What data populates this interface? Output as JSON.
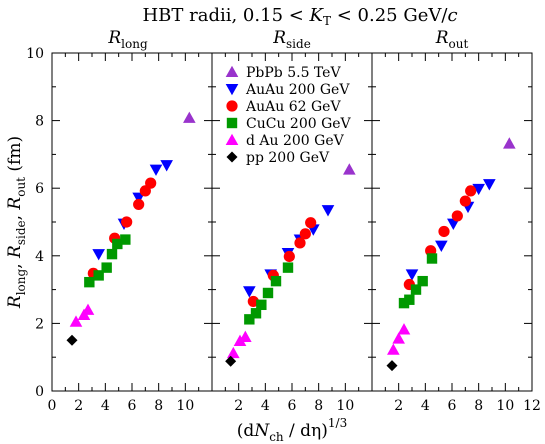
{
  "chart_data": {
    "type": "scatter",
    "title": "HBT radii,  0.15 < K_T < 0.25 GeV/c",
    "title_parts": {
      "prefix": "HBT radii,  0.15 < ",
      "var": "K",
      "var_sub": "T",
      "middle": " < 0.25 GeV/",
      "unit_var": "c"
    },
    "xlabel": "(dN_ch / dη)^1/3",
    "xlabel_parts": {
      "open": "(d",
      "var": "N",
      "sub": "ch",
      "rest": " / dη)",
      "sup": "1/3"
    },
    "ylabel": "R_long, R_side, R_out (fm)",
    "ylabel_parts": {
      "r": "R",
      "subs": [
        "long",
        "side",
        "out"
      ],
      "unit": " (fm)"
    },
    "ylim": [
      0,
      10
    ],
    "y_ticks": [
      "0",
      "2",
      "4",
      "6",
      "8",
      "10"
    ],
    "panels": [
      {
        "name": "long",
        "xlim": [
          0,
          12
        ],
        "x_ticks": [
          "0",
          "2",
          "4",
          "6",
          "8",
          "10"
        ]
      },
      {
        "name": "side",
        "xlim": [
          0,
          12
        ],
        "x_ticks": [
          "2",
          "4",
          "6",
          "8",
          "10"
        ]
      },
      {
        "name": "out",
        "xlim": [
          0,
          12
        ],
        "x_ticks": [
          "2",
          "4",
          "6",
          "8",
          "10",
          "12"
        ]
      }
    ],
    "legend_location": "top-center",
    "series": [
      {
        "name": "PbPb  5.5 TeV",
        "marker": "triangle-up",
        "color": "#9933cc",
        "long": [
          [
            10.3,
            8.08
          ]
        ],
        "side": [
          [
            10.3,
            6.55
          ]
        ],
        "out": [
          [
            10.3,
            7.32
          ]
        ]
      },
      {
        "name": "AuAu  200 GeV",
        "marker": "triangle-down",
        "color": "#0000ff",
        "long": [
          [
            3.5,
            4.05
          ],
          [
            5.4,
            4.95
          ],
          [
            6.5,
            5.72
          ],
          [
            7.8,
            6.55
          ],
          [
            8.6,
            6.68
          ]
        ],
        "side": [
          [
            2.8,
            2.95
          ],
          [
            4.4,
            3.45
          ],
          [
            5.7,
            4.08
          ],
          [
            6.6,
            4.48
          ],
          [
            7.6,
            4.78
          ],
          [
            8.7,
            5.35
          ]
        ],
        "out": [
          [
            3.0,
            3.45
          ],
          [
            5.2,
            4.3
          ],
          [
            6.1,
            4.95
          ],
          [
            7.2,
            5.45
          ],
          [
            8.0,
            5.98
          ],
          [
            8.8,
            6.12
          ]
        ]
      },
      {
        "name": "AuAu  62 GeV",
        "marker": "circle",
        "color": "#ff0000",
        "long": [
          [
            3.1,
            3.48
          ],
          [
            4.7,
            4.52
          ],
          [
            5.6,
            5.0
          ],
          [
            6.5,
            5.52
          ],
          [
            7.0,
            5.92
          ],
          [
            7.4,
            6.15
          ]
        ],
        "side": [
          [
            3.1,
            2.65
          ],
          [
            4.6,
            3.42
          ],
          [
            5.8,
            3.98
          ],
          [
            6.6,
            4.38
          ],
          [
            7.0,
            4.65
          ],
          [
            7.4,
            4.98
          ]
        ],
        "out": [
          [
            2.8,
            3.15
          ],
          [
            4.4,
            4.15
          ],
          [
            5.4,
            4.72
          ],
          [
            6.4,
            5.18
          ],
          [
            7.0,
            5.62
          ],
          [
            7.4,
            5.92
          ]
        ]
      },
      {
        "name": "CuCu  200 GeV",
        "marker": "square",
        "color": "#009900",
        "long": [
          [
            2.8,
            3.22
          ],
          [
            3.5,
            3.42
          ],
          [
            4.1,
            3.65
          ],
          [
            4.5,
            4.05
          ],
          [
            4.9,
            4.35
          ],
          [
            5.5,
            4.48
          ]
        ],
        "side": [
          [
            2.8,
            2.12
          ],
          [
            3.3,
            2.3
          ],
          [
            3.7,
            2.55
          ],
          [
            4.2,
            2.9
          ],
          [
            4.8,
            3.25
          ],
          [
            5.7,
            3.65
          ]
        ],
        "out": [
          [
            2.4,
            2.6
          ],
          [
            2.8,
            2.7
          ],
          [
            3.3,
            3.0
          ],
          [
            3.8,
            3.25
          ],
          [
            4.5,
            3.92
          ]
        ]
      },
      {
        "name": "d Au  200 GeV",
        "marker": "triangle-up",
        "color": "#ff00ff",
        "long": [
          [
            1.8,
            2.05
          ],
          [
            2.4,
            2.25
          ],
          [
            2.7,
            2.4
          ]
        ],
        "side": [
          [
            1.6,
            1.12
          ],
          [
            2.1,
            1.48
          ],
          [
            2.5,
            1.6
          ]
        ],
        "out": [
          [
            1.6,
            1.22
          ],
          [
            2.0,
            1.55
          ],
          [
            2.4,
            1.82
          ]
        ]
      },
      {
        "name": "pp  200 GeV",
        "marker": "diamond",
        "color": "#000000",
        "long": [
          [
            1.5,
            1.5
          ]
        ],
        "side": [
          [
            1.4,
            0.88
          ]
        ],
        "out": [
          [
            1.5,
            0.75
          ]
        ]
      }
    ]
  }
}
